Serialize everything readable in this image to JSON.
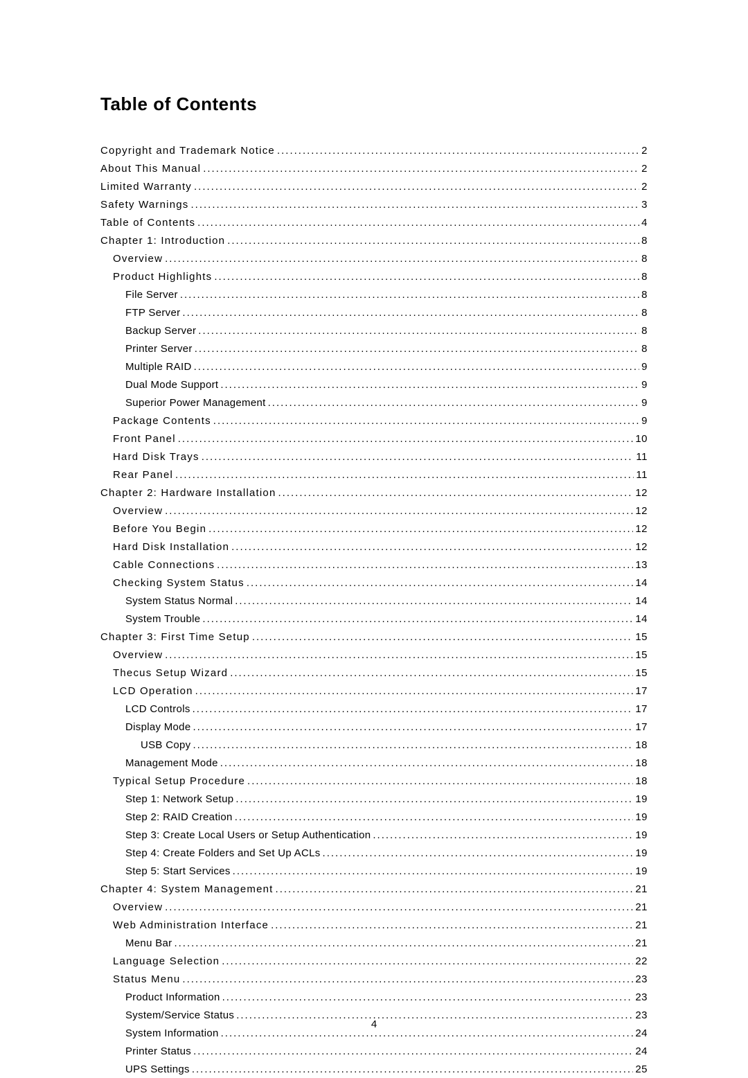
{
  "title": "Table of Contents",
  "page_number": "4",
  "entries": [
    {
      "indent": 0,
      "title": "Copyright and Trademark Notice",
      "page": "2",
      "spacing": true
    },
    {
      "indent": 0,
      "title": "About This Manual",
      "page": "2",
      "spacing": true
    },
    {
      "indent": 0,
      "title": "Limited Warranty",
      "page": "2",
      "spacing": true
    },
    {
      "indent": 0,
      "title": "Safety Warnings",
      "page": "3",
      "spacing": true
    },
    {
      "indent": 0,
      "title": "Table of Contents",
      "page": "4",
      "spacing": true
    },
    {
      "indent": 0,
      "title": "Chapter 1: Introduction",
      "page": "8",
      "spacing": true
    },
    {
      "indent": 1,
      "title": "Overview",
      "page": "8",
      "spacing": true
    },
    {
      "indent": 1,
      "title": "Product Highlights",
      "page": "8",
      "spacing": true
    },
    {
      "indent": 2,
      "title": "File Server",
      "page": "8",
      "spacing": false
    },
    {
      "indent": 2,
      "title": "FTP Server",
      "page": "8",
      "spacing": false
    },
    {
      "indent": 2,
      "title": "Backup Server",
      "page": "8",
      "spacing": false
    },
    {
      "indent": 2,
      "title": "Printer Server",
      "page": "8",
      "spacing": false
    },
    {
      "indent": 2,
      "title": "Multiple RAID",
      "page": "9",
      "spacing": false
    },
    {
      "indent": 2,
      "title": "Dual Mode Support",
      "page": "9",
      "spacing": false
    },
    {
      "indent": 2,
      "title": "Superior Power Management",
      "page": "9",
      "spacing": false
    },
    {
      "indent": 1,
      "title": "Package Contents",
      "page": "9",
      "spacing": true
    },
    {
      "indent": 1,
      "title": "Front Panel",
      "page": "10",
      "spacing": true
    },
    {
      "indent": 1,
      "title": "Hard Disk Trays",
      "page": "11",
      "spacing": true
    },
    {
      "indent": 1,
      "title": "Rear Panel",
      "page": "11",
      "spacing": true
    },
    {
      "indent": 0,
      "title": "Chapter 2: Hardware Installation",
      "page": "12",
      "spacing": true
    },
    {
      "indent": 1,
      "title": "Overview",
      "page": "12",
      "spacing": true
    },
    {
      "indent": 1,
      "title": "Before You Begin",
      "page": "12",
      "spacing": true
    },
    {
      "indent": 1,
      "title": "Hard Disk Installation",
      "page": "12",
      "spacing": true
    },
    {
      "indent": 1,
      "title": "Cable Connections",
      "page": "13",
      "spacing": true
    },
    {
      "indent": 1,
      "title": "Checking System Status",
      "page": "14",
      "spacing": true
    },
    {
      "indent": 2,
      "title": "System Status Normal",
      "page": "14",
      "spacing": false
    },
    {
      "indent": 2,
      "title": "System Trouble",
      "page": "14",
      "spacing": false
    },
    {
      "indent": 0,
      "title": "Chapter 3: First Time Setup",
      "page": "15",
      "spacing": true
    },
    {
      "indent": 1,
      "title": "Overview",
      "page": "15",
      "spacing": true
    },
    {
      "indent": 1,
      "title": "Thecus Setup Wizard",
      "page": "15",
      "spacing": true
    },
    {
      "indent": 1,
      "title": "LCD Operation",
      "page": "17",
      "spacing": true
    },
    {
      "indent": 2,
      "title": "LCD Controls",
      "page": "17",
      "spacing": false
    },
    {
      "indent": 2,
      "title": "Display Mode",
      "page": "17",
      "spacing": false
    },
    {
      "indent": 3,
      "title": "USB Copy",
      "page": "18",
      "spacing": false
    },
    {
      "indent": 2,
      "title": "Management Mode",
      "page": "18",
      "spacing": false
    },
    {
      "indent": 1,
      "title": "Typical Setup Procedure",
      "page": "18",
      "spacing": true
    },
    {
      "indent": 2,
      "title": "Step 1: Network Setup",
      "page": "19",
      "spacing": false
    },
    {
      "indent": 2,
      "title": "Step 2: RAID Creation",
      "page": "19",
      "spacing": false
    },
    {
      "indent": 2,
      "title": "Step 3: Create Local Users or Setup Authentication",
      "page": "19",
      "spacing": false
    },
    {
      "indent": 2,
      "title": "Step 4: Create Folders and Set Up ACLs",
      "page": "19",
      "spacing": false
    },
    {
      "indent": 2,
      "title": "Step 5: Start Services",
      "page": "19",
      "spacing": false
    },
    {
      "indent": 0,
      "title": "Chapter 4: System Management",
      "page": "21",
      "spacing": true
    },
    {
      "indent": 1,
      "title": "Overview",
      "page": "21",
      "spacing": true
    },
    {
      "indent": 1,
      "title": "Web Administration Interface",
      "page": "21",
      "spacing": true
    },
    {
      "indent": 2,
      "title": "Menu Bar",
      "page": "21",
      "spacing": false
    },
    {
      "indent": 1,
      "title": "Language Selection",
      "page": "22",
      "spacing": true
    },
    {
      "indent": 1,
      "title": "Status Menu",
      "page": "23",
      "spacing": true
    },
    {
      "indent": 2,
      "title": "Product Information",
      "page": "23",
      "spacing": false
    },
    {
      "indent": 2,
      "title": "System/Service Status",
      "page": "23",
      "spacing": false
    },
    {
      "indent": 2,
      "title": "System Information",
      "page": "24",
      "spacing": false
    },
    {
      "indent": 2,
      "title": "Printer Status",
      "page": "24",
      "spacing": false
    },
    {
      "indent": 2,
      "title": "UPS Settings",
      "page": "25",
      "spacing": false
    }
  ]
}
